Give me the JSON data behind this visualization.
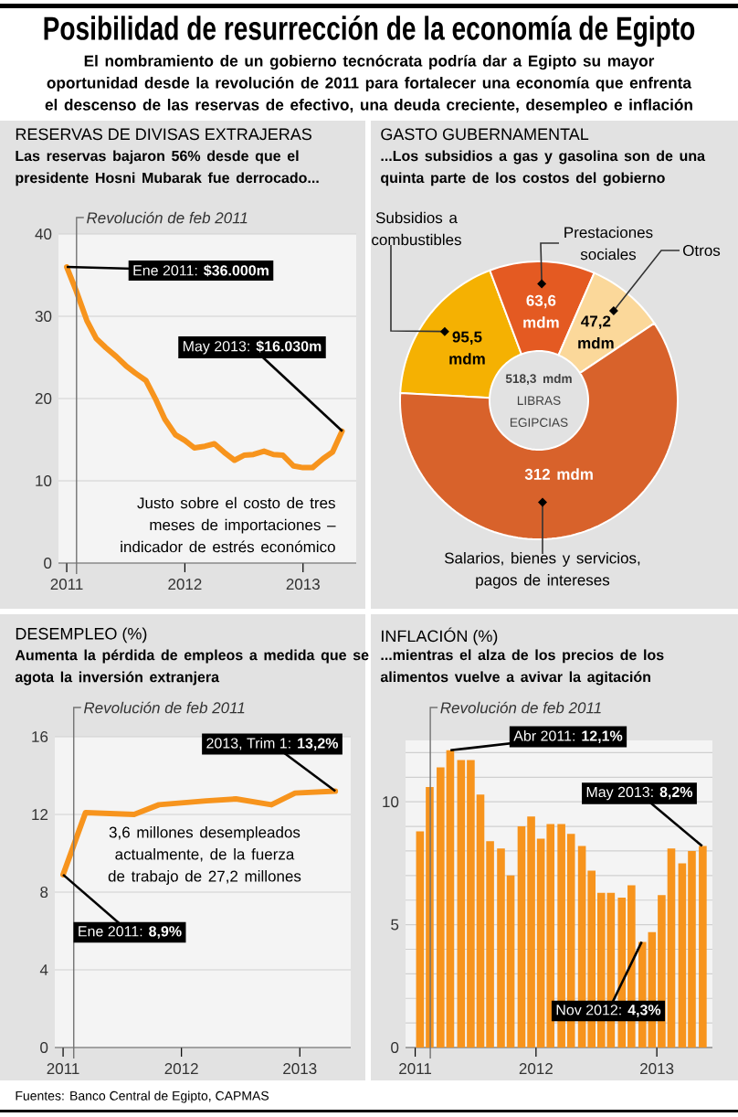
{
  "chart_data": [
    {
      "type": "line",
      "title": "RESERVAS DE DIVISAS EXTRAJERAS",
      "subtitle": "Las reservas bajaron 56% desde que el presidente Hosni Mubarak fue derrocado...",
      "x": [
        2011,
        2011.083,
        2011.167,
        2011.25,
        2011.333,
        2011.417,
        2011.5,
        2011.583,
        2011.667,
        2011.75,
        2011.833,
        2011.917,
        2012,
        2012.083,
        2012.167,
        2012.25,
        2012.333,
        2012.417,
        2012.5,
        2012.583,
        2012.667,
        2012.75,
        2012.833,
        2012.917,
        2013,
        2013.083,
        2013.167,
        2013.25,
        2013.333
      ],
      "values": [
        36.0,
        33.1,
        29.5,
        27.3,
        26.2,
        25.1,
        24.0,
        23.1,
        22.2,
        20.0,
        17.5,
        15.6,
        14.9,
        14.0,
        14.2,
        14.5,
        13.5,
        12.5,
        13.1,
        13.2,
        13.6,
        13.2,
        13.1,
        11.8,
        11.6,
        11.6,
        12.7,
        13.5,
        16.03
      ],
      "color": "#f7941d",
      "xlim": [
        2010.93,
        2013.45
      ],
      "ylim": [
        0,
        40
      ],
      "xticks": [
        2011,
        2012,
        2013
      ],
      "yticks": [
        0,
        10,
        20,
        30,
        40
      ],
      "grid": "y",
      "ref_lines": [
        {
          "axis": "x",
          "value": 2011.083,
          "label": "Revolución de feb 2011"
        }
      ],
      "annotations": [
        "Posibilidad de resurrección de la economía de Egipto",
        "El nombramiento de un gobierno tecnócrata podría dar a Egipto su mayor oportunidad desde la revolución de 2011 para fortalecer una economía que enfrenta el descenso de las reservas de efectivo, una deuda creciente, desempleo e inflación",
        {
          "text": "Ene 2011: **$36.000m**",
          "x": 2011,
          "y": 36.0
        },
        {
          "text": "May 2013: **$16.030m**",
          "x": 2013.333,
          "y": 16.03
        },
        "Justo sobre el costo de tres meses de importaciones – indicador de estrés económico"
      ]
    },
    {
      "type": "donut",
      "title": "GASTO GUBERNAMENTAL",
      "subtitle": "...Los subsidios a gas y gasolina son de una quinta parte de los costos del gobierno",
      "categories": [
        "Subsidios a combustibles",
        "Prestaciones sociales",
        "Otros",
        "Salarios, bienes y servicios, pagos de intereses"
      ],
      "values": [
        95.5,
        63.6,
        47.2,
        312
      ],
      "colors": [
        "#f5b102",
        "#e45a22",
        "#fbd89a",
        "#d8622b"
      ],
      "value_labels": [
        "95,5 mdm",
        "63,6 mdm",
        "47,2 mdm",
        "312 mdm"
      ],
      "annotations": [
        "**518,3 mdm** LIBRAS EGIPCIAS"
      ]
    },
    {
      "type": "line",
      "title": "DESEMPLEO (%)",
      "subtitle": "Aumenta la pérdida de empleos a medida que se agota la inversión extranjera",
      "x": [
        2011,
        2011.19,
        2011.6,
        2011.81,
        2012.21,
        2012.46,
        2012.76,
        2012.96,
        2013.3
      ],
      "values": [
        8.9,
        12.1,
        12.0,
        12.5,
        12.7,
        12.8,
        12.5,
        13.1,
        13.2
      ],
      "color": "#f7941d",
      "xlim": [
        2010.93,
        2013.43
      ],
      "ylim": [
        0,
        16
      ],
      "xticks": [
        2011,
        2012,
        2013
      ],
      "yticks": [
        0,
        4,
        8,
        12,
        16
      ],
      "grid": "y",
      "ref_lines": [
        {
          "axis": "x",
          "value": 2011.09,
          "label": "Revolución de feb 2011"
        }
      ],
      "annotations": [
        {
          "text": "2013, Trim 1: **13,2%**",
          "x": 2013.3,
          "y": 13.2
        },
        {
          "text": "Ene 2011: **8,9%**",
          "x": 2011,
          "y": 8.9
        },
        "3,6 millones desempleados actualmente, de la fuerza de trabajo de 27,2 millones",
        "Fuentes: Banco Central de Egipto, CAPMAS"
      ]
    },
    {
      "type": "bar",
      "title": "INFLACIÓN (%)",
      "subtitle": "...mientras el alza de los precios de los alimentos vuelve a avivar la agitación",
      "x": [
        2011.042,
        2011.125,
        2011.208,
        2011.292,
        2011.375,
        2011.458,
        2011.542,
        2011.625,
        2011.708,
        2011.792,
        2011.875,
        2011.958,
        2012.042,
        2012.125,
        2012.208,
        2012.292,
        2012.375,
        2012.458,
        2012.542,
        2012.625,
        2012.708,
        2012.792,
        2012.875,
        2012.958,
        2013.042,
        2013.125,
        2013.208,
        2013.292,
        2013.375
      ],
      "values": [
        8.8,
        10.6,
        11.4,
        12.1,
        11.7,
        11.7,
        10.3,
        8.4,
        8.1,
        7.0,
        9.0,
        9.4,
        8.5,
        9.1,
        9.1,
        8.7,
        8.2,
        7.2,
        6.3,
        6.3,
        6.1,
        6.6,
        4.3,
        4.7,
        6.2,
        8.1,
        7.5,
        8.0,
        8.2
      ],
      "color": "#f7941d",
      "xlim": [
        2010.92,
        2013.46
      ],
      "ylim": [
        0,
        12.5
      ],
      "xticks": [
        2011,
        2012,
        2013
      ],
      "yticks": [
        0,
        {
          "value": 1,
          "label": null
        },
        {
          "value": 2,
          "label": null
        },
        {
          "value": 3,
          "label": null
        },
        {
          "value": 4,
          "label": null
        },
        5,
        {
          "value": 6,
          "label": null
        },
        {
          "value": 7,
          "label": null
        },
        {
          "value": 8,
          "label": null
        },
        {
          "value": 9,
          "label": null
        },
        10,
        {
          "value": 11,
          "label": null
        },
        {
          "value": 12,
          "label": null
        }
      ],
      "grid": "y",
      "ref_lines": [
        {
          "axis": "x",
          "value": 2011.125,
          "label": "Revolución de feb 2011"
        }
      ],
      "annotations": [
        {
          "text": "Abr 2011: **12,1%**",
          "x": 2011.292,
          "y": 12.1
        },
        {
          "text": "May 2013: **8,2%**",
          "x": 2013.375,
          "y": 8.2
        },
        {
          "text": "Nov 2012: **4,3%**",
          "x": 2012.875,
          "y": 4.3
        }
      ]
    }
  ]
}
